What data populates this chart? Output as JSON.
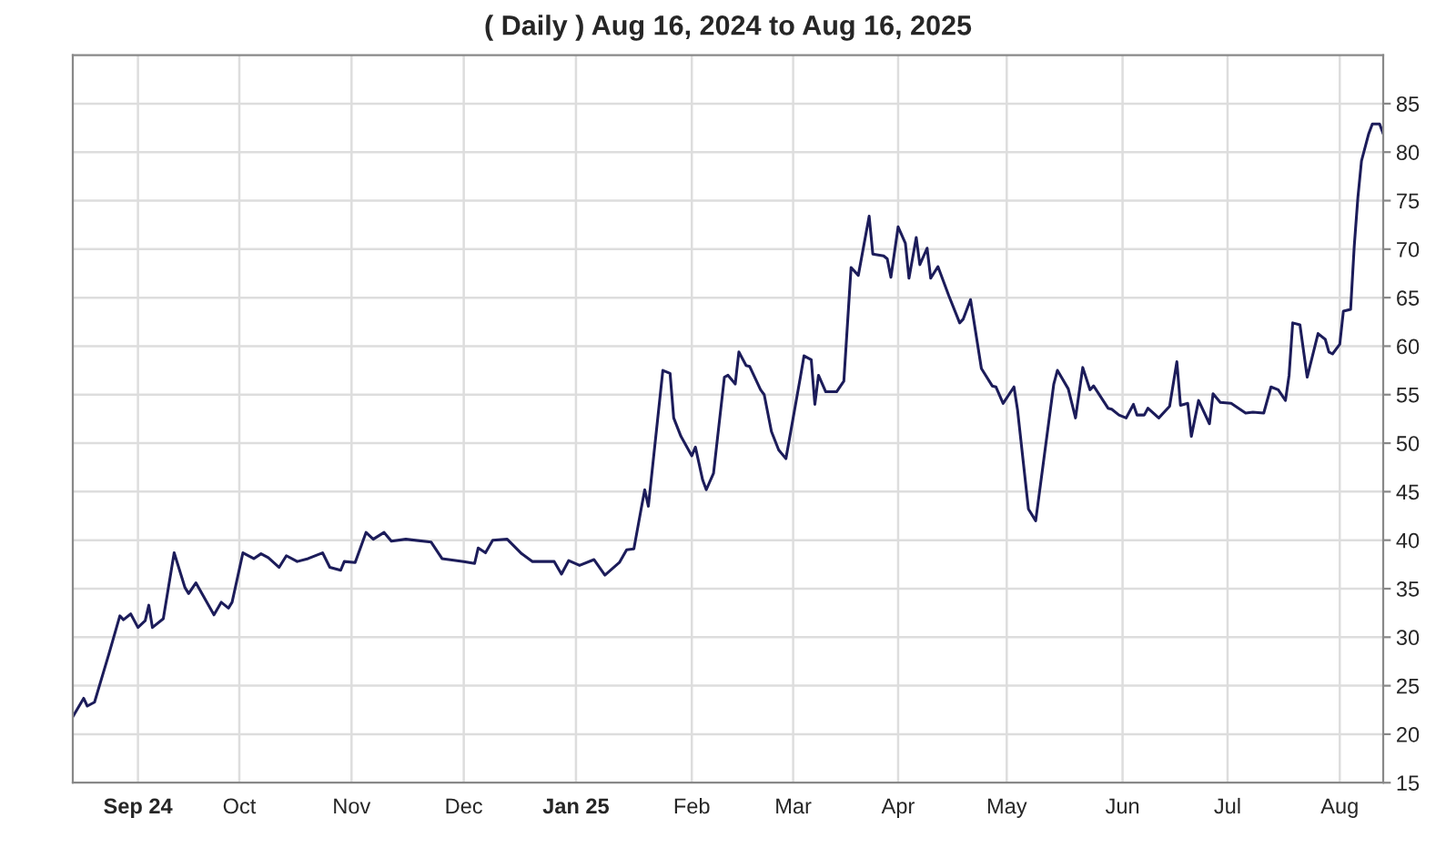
{
  "chart_data": {
    "type": "line",
    "title": "( Daily ) Aug 16, 2024 to Aug 16, 2025",
    "x": [
      "2024-08-16",
      "2024-08-19",
      "2024-08-20",
      "2024-08-22",
      "2024-08-26",
      "2024-08-29",
      "2024-08-30",
      "2024-09-01",
      "2024-09-03",
      "2024-09-05",
      "2024-09-06",
      "2024-09-07",
      "2024-09-10",
      "2024-09-13",
      "2024-09-16",
      "2024-09-17",
      "2024-09-19",
      "2024-09-24",
      "2024-09-26",
      "2024-09-28",
      "2024-09-29",
      "2024-10-02",
      "2024-10-05",
      "2024-10-07",
      "2024-10-09",
      "2024-10-12",
      "2024-10-14",
      "2024-10-17",
      "2024-10-20",
      "2024-10-24",
      "2024-10-26",
      "2024-10-29",
      "2024-10-30",
      "2024-11-02",
      "2024-11-05",
      "2024-11-07",
      "2024-11-10",
      "2024-11-12",
      "2024-11-16",
      "2024-11-23",
      "2024-11-26",
      "2024-12-02",
      "2024-12-05",
      "2024-12-06",
      "2024-12-08",
      "2024-12-10",
      "2024-12-14",
      "2024-12-18",
      "2024-12-21",
      "2024-12-27",
      "2024-12-29",
      "2024-12-31",
      "2025-01-03",
      "2025-01-07",
      "2025-01-10",
      "2025-01-14",
      "2025-01-16",
      "2025-01-18",
      "2025-01-20",
      "2025-01-21",
      "2025-01-22",
      "2025-01-26",
      "2025-01-28",
      "2025-01-29",
      "2025-01-31",
      "2025-02-03",
      "2025-02-04",
      "2025-02-06",
      "2025-02-07",
      "2025-02-09",
      "2025-02-12",
      "2025-02-13",
      "2025-02-15",
      "2025-02-16",
      "2025-02-18",
      "2025-02-19",
      "2025-02-22",
      "2025-02-23",
      "2025-02-25",
      "2025-02-27",
      "2025-03-01",
      "2025-03-05",
      "2025-03-06",
      "2025-03-08",
      "2025-03-09",
      "2025-03-10",
      "2025-03-12",
      "2025-03-15",
      "2025-03-17",
      "2025-03-19",
      "2025-03-21",
      "2025-03-24",
      "2025-03-25",
      "2025-03-28",
      "2025-03-29",
      "2025-03-30",
      "2025-04-01",
      "2025-04-03",
      "2025-04-04",
      "2025-04-06",
      "2025-04-07",
      "2025-04-09",
      "2025-04-10",
      "2025-04-12",
      "2025-04-15",
      "2025-04-18",
      "2025-04-19",
      "2025-04-21",
      "2025-04-24",
      "2025-04-27",
      "2025-04-28",
      "2025-04-30",
      "2025-05-03",
      "2025-05-04",
      "2025-05-07",
      "2025-05-09",
      "2025-05-14",
      "2025-05-15",
      "2025-05-18",
      "2025-05-20",
      "2025-05-22",
      "2025-05-24",
      "2025-05-25",
      "2025-05-29",
      "2025-05-30",
      "2025-06-01",
      "2025-06-03",
      "2025-06-05",
      "2025-06-06",
      "2025-06-08",
      "2025-06-09",
      "2025-06-12",
      "2025-06-15",
      "2025-06-17",
      "2025-06-18",
      "2025-06-20",
      "2025-06-21",
      "2025-06-23",
      "2025-06-26",
      "2025-06-27",
      "2025-06-29",
      "2025-07-02",
      "2025-07-06",
      "2025-07-08",
      "2025-07-11",
      "2025-07-13",
      "2025-07-15",
      "2025-07-17",
      "2025-07-18",
      "2025-07-19",
      "2025-07-21",
      "2025-07-23",
      "2025-07-26",
      "2025-07-28",
      "2025-07-29",
      "2025-07-30",
      "2025-08-01",
      "2025-08-02",
      "2025-08-04",
      "2025-08-05",
      "2025-08-06",
      "2025-08-07",
      "2025-08-09",
      "2025-08-10",
      "2025-08-12",
      "2025-08-13"
    ],
    "series": [
      {
        "color": "#1c1c5a",
        "values": [
          21.8,
          23.7,
          22.9,
          23.3,
          28.3,
          32.2,
          31.8,
          32.4,
          31.0,
          31.7,
          33.3,
          31.0,
          31.9,
          38.7,
          35.1,
          34.5,
          35.6,
          32.3,
          33.6,
          33.0,
          33.6,
          38.7,
          38.1,
          38.6,
          38.2,
          37.2,
          38.4,
          37.8,
          38.1,
          38.7,
          37.2,
          36.9,
          37.8,
          37.7,
          40.8,
          40.1,
          40.8,
          39.9,
          40.1,
          39.8,
          38.1,
          37.8,
          37.6,
          39.2,
          38.7,
          40.0,
          40.1,
          38.6,
          37.8,
          37.8,
          36.5,
          37.9,
          37.4,
          38.0,
          36.4,
          37.7,
          39.0,
          39.1,
          43.2,
          45.2,
          43.5,
          57.5,
          57.2,
          52.6,
          50.7,
          48.7,
          49.6,
          46.2,
          45.2,
          46.9,
          56.8,
          57.0,
          56.1,
          59.4,
          58.0,
          57.9,
          55.5,
          55.0,
          51.2,
          49.3,
          48.4,
          56.8,
          59.0,
          58.6,
          54.0,
          57.0,
          55.3,
          55.3,
          56.4,
          68.1,
          67.3,
          73.4,
          69.5,
          69.3,
          69.0,
          67.1,
          72.3,
          70.6,
          67.0,
          71.2,
          68.4,
          70.1,
          67.0,
          68.2,
          65.2,
          62.4,
          62.8,
          64.8,
          57.7,
          55.9,
          55.8,
          54.1,
          55.8,
          53.4,
          43.2,
          42.0,
          56.1,
          57.5,
          55.6,
          52.6,
          57.8,
          55.5,
          55.9,
          53.6,
          53.5,
          52.9,
          52.6,
          54.0,
          52.9,
          52.9,
          53.6,
          52.6,
          53.8,
          58.4,
          53.9,
          54.1,
          50.7,
          54.4,
          52.0,
          55.1,
          54.2,
          54.1,
          53.1,
          53.2,
          53.1,
          55.8,
          55.5,
          54.4,
          57.0,
          62.4,
          62.2,
          56.8,
          61.3,
          60.7,
          59.4,
          59.2,
          60.2,
          63.6,
          63.8,
          70.3,
          75.3,
          79.1,
          81.9,
          82.9,
          82.9,
          81.9
        ]
      }
    ],
    "xlim": [
      "2024-08-16",
      "2025-08-13"
    ],
    "xticks": [
      {
        "value": "2024-09-03",
        "label": "Sep 24"
      },
      {
        "value": "2024-10-01",
        "label": "Oct"
      },
      {
        "value": "2024-11-01",
        "label": "Nov"
      },
      {
        "value": "2024-12-02",
        "label": "Dec"
      },
      {
        "value": "2025-01-02",
        "label": "Jan 25"
      },
      {
        "value": "2025-02-03",
        "label": "Feb"
      },
      {
        "value": "2025-03-03",
        "label": "Mar"
      },
      {
        "value": "2025-04-01",
        "label": "Apr"
      },
      {
        "value": "2025-05-01",
        "label": "May"
      },
      {
        "value": "2025-06-02",
        "label": "Jun"
      },
      {
        "value": "2025-07-01",
        "label": "Jul"
      },
      {
        "value": "2025-08-01",
        "label": "Aug"
      }
    ],
    "ylim": [
      15,
      90
    ],
    "yticks": [
      15,
      20,
      25,
      30,
      35,
      40,
      45,
      50,
      55,
      60,
      65,
      70,
      75,
      80,
      85
    ],
    "grid": true,
    "marker": "none",
    "line_style": "solid",
    "legend": false
  }
}
